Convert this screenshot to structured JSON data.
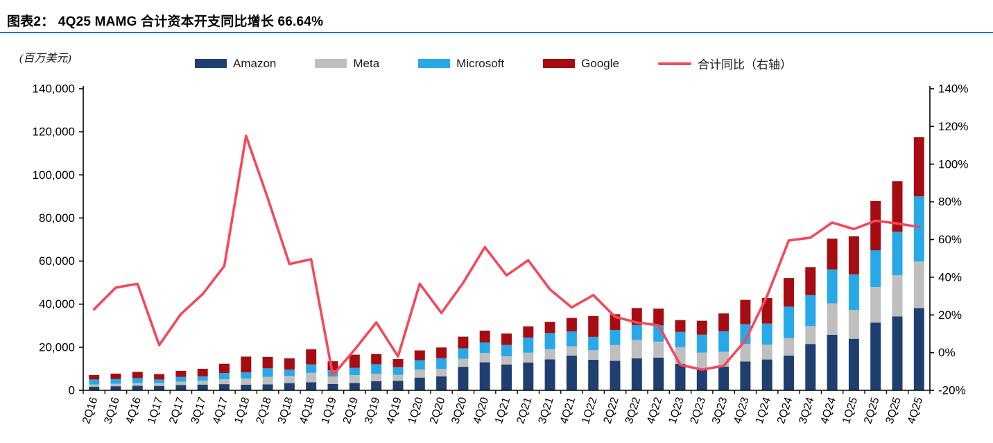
{
  "header": {
    "title": "图表2： 4Q25 MAMG 合计资本开支同比增长 66.64%"
  },
  "unit_label": "(百万美元)",
  "colors": {
    "amazon": "#1F3F70",
    "meta": "#BFBFBF",
    "microsoft": "#29A8E8",
    "google": "#A60D12",
    "yoy_line": "#F4485C",
    "title_rule": "#2E75B6",
    "axis": "#000000"
  },
  "legend": {
    "items": [
      {
        "label": "Amazon",
        "color": "#1F3F70",
        "type": "box"
      },
      {
        "label": "Meta",
        "color": "#BFBFBF",
        "type": "box"
      },
      {
        "label": "Microsoft",
        "color": "#29A8E8",
        "type": "box"
      },
      {
        "label": "Google",
        "color": "#A60D12",
        "type": "box"
      },
      {
        "label": "合计同比（右轴）",
        "color": "#F4485C",
        "type": "line"
      }
    ]
  },
  "chart_data": {
    "type": "bar",
    "subtype": "stacked-bars-with-line",
    "title": "4Q25 MAMG 合计资本开支同比增长 66.64%",
    "unit": "百万美元 (million USD)",
    "grid": false,
    "legend_position": "top",
    "categories": [
      "2Q16",
      "3Q16",
      "4Q16",
      "1Q17",
      "2Q17",
      "3Q17",
      "4Q17",
      "1Q18",
      "2Q18",
      "3Q18",
      "4Q18",
      "1Q19",
      "2Q19",
      "3Q19",
      "4Q19",
      "1Q20",
      "2Q20",
      "3Q20",
      "4Q20",
      "1Q21",
      "2Q21",
      "3Q21",
      "4Q21",
      "1Q22",
      "2Q22",
      "3Q22",
      "4Q22",
      "1Q23",
      "2Q23",
      "3Q23",
      "4Q23",
      "1Q24",
      "2Q24",
      "3Q24",
      "4Q24",
      "1Q25",
      "2Q25",
      "3Q25",
      "4Q25"
    ],
    "series": [
      {
        "name": "Amazon",
        "color": "#1F3F70",
        "values": [
          1700,
          1900,
          2100,
          2040,
          2500,
          2660,
          2860,
          2580,
          2760,
          3350,
          3730,
          2900,
          3400,
          4200,
          4400,
          5900,
          6500,
          10900,
          13000,
          12000,
          12900,
          14400,
          16100,
          14200,
          13700,
          14800,
          15200,
          12300,
          9600,
          11000,
          13400,
          14300,
          16100,
          21500,
          25800,
          23900,
          31400,
          34300,
          38200
        ]
      },
      {
        "name": "Meta",
        "color": "#BFBFBF",
        "values": [
          1000,
          1100,
          1270,
          1270,
          1440,
          1760,
          2260,
          2810,
          3460,
          3340,
          4370,
          3500,
          3630,
          3500,
          2800,
          3800,
          3400,
          3700,
          4300,
          3800,
          4600,
          4700,
          4300,
          4400,
          7300,
          8600,
          7400,
          7800,
          7900,
          6900,
          8100,
          6900,
          8100,
          8300,
          14600,
          13400,
          16500,
          19100,
          21600
        ]
      },
      {
        "name": "Microsoft",
        "color": "#29A8E8",
        "values": [
          2300,
          2200,
          2300,
          1700,
          2300,
          2100,
          2900,
          2940,
          3980,
          2900,
          3890,
          2900,
          3390,
          4400,
          3500,
          4300,
          5000,
          4900,
          4900,
          5200,
          7000,
          7500,
          6900,
          6200,
          7000,
          6900,
          7500,
          7000,
          8300,
          9500,
          9200,
          9800,
          14600,
          14400,
          15700,
          16500,
          17100,
          20200,
          30200
        ]
      },
      {
        "name": "Google",
        "color": "#A60D12",
        "values": [
          2100,
          2550,
          2900,
          2510,
          2810,
          3500,
          4310,
          7300,
          5300,
          5280,
          7080,
          4200,
          6130,
          4750,
          3800,
          4500,
          5000,
          5400,
          5500,
          5350,
          5200,
          5200,
          6300,
          9700,
          7300,
          7900,
          7800,
          5500,
          6500,
          8300,
          11300,
          11800,
          13300,
          13000,
          14300,
          17700,
          22900,
          23500,
          27500
        ]
      }
    ],
    "line_series": {
      "name": "合计同比（右轴）",
      "axis": "right",
      "color": "#F4485C",
      "values": [
        23,
        34.5,
        36.5,
        4,
        20.5,
        31,
        46,
        115,
        82,
        47,
        49.5,
        -12,
        1.5,
        16,
        -2,
        36.5,
        21,
        37,
        56,
        41,
        49,
        33.5,
        24,
        30.5,
        19,
        16,
        14.5,
        -6.5,
        -9,
        -7,
        6.5,
        30,
        59.5,
        61,
        69,
        65.5,
        70,
        68.5,
        66.64
      ]
    },
    "left_axis": {
      "min": 0,
      "max": 140000,
      "step": 20000,
      "tick_labels": [
        "0",
        "20,000",
        "40,000",
        "60,000",
        "80,000",
        "100,000",
        "120,000",
        "140,000"
      ]
    },
    "right_axis": {
      "min": -20,
      "max": 140,
      "step": 20,
      "tick_labels": [
        "-20%",
        "0%",
        "20%",
        "40%",
        "60%",
        "80%",
        "100%",
        "120%",
        "140%"
      ]
    }
  }
}
